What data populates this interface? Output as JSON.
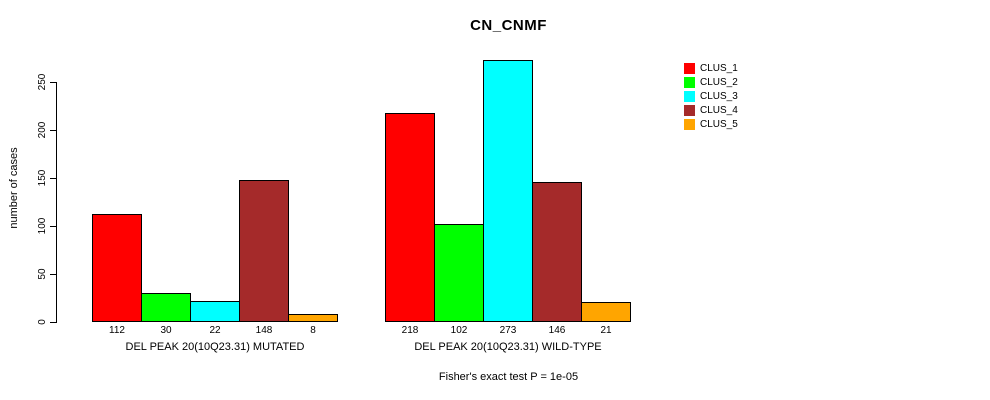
{
  "title": "CN_CNMF",
  "ylabel": "number of cases",
  "footer": "Fisher's exact test P = 1e-05",
  "legend": {
    "items": [
      {
        "label": "CLUS_1",
        "color": "#FF0000"
      },
      {
        "label": "CLUS_2",
        "color": "#00FF00"
      },
      {
        "label": "CLUS_3",
        "color": "#00FFFF"
      },
      {
        "label": "CLUS_4",
        "color": "#A52A2A"
      },
      {
        "label": "CLUS_5",
        "color": "#FFA500"
      }
    ]
  },
  "chart_data": {
    "type": "bar",
    "title": "CN_CNMF",
    "ylabel": "number of cases",
    "xlabel": "",
    "yticks": [
      0,
      50,
      100,
      150,
      200,
      250
    ],
    "ylim": [
      0,
      273
    ],
    "grid": false,
    "legend_position": "right",
    "bar_border_color": "#000000",
    "series_names": [
      "CLUS_1",
      "CLUS_2",
      "CLUS_3",
      "CLUS_4",
      "CLUS_5"
    ],
    "colors": [
      "#FF0000",
      "#00FF00",
      "#00FFFF",
      "#A52A2A",
      "#FFA500"
    ],
    "groups": [
      {
        "label": "DEL PEAK 20(10Q23.31) MUTATED",
        "values": [
          112,
          30,
          22,
          148,
          8
        ]
      },
      {
        "label": "DEL PEAK 20(10Q23.31) WILD-TYPE",
        "values": [
          218,
          102,
          273,
          146,
          21
        ]
      }
    ],
    "annotation": "Fisher's exact test P = 1e-05"
  }
}
